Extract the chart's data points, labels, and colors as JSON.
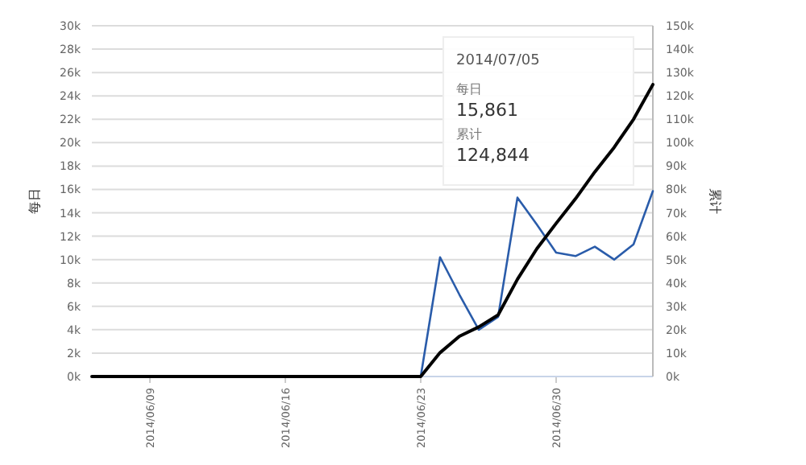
{
  "chart_data": {
    "type": "line",
    "x": [
      "2014-06-06",
      "2014-06-07",
      "2014-06-08",
      "2014-06-09",
      "2014-06-10",
      "2014-06-11",
      "2014-06-12",
      "2014-06-13",
      "2014-06-14",
      "2014-06-15",
      "2014-06-16",
      "2014-06-17",
      "2014-06-18",
      "2014-06-19",
      "2014-06-20",
      "2014-06-21",
      "2014-06-22",
      "2014-06-23",
      "2014-06-24",
      "2014-06-25",
      "2014-06-26",
      "2014-06-27",
      "2014-06-28",
      "2014-06-29",
      "2014-06-30",
      "2014-07-01",
      "2014-07-02",
      "2014-07-03",
      "2014-07-04",
      "2014-07-05"
    ],
    "series": [
      {
        "color": "#2a5caa",
        "values": [
          null,
          null,
          null,
          null,
          null,
          null,
          null,
          null,
          null,
          null,
          null,
          null,
          null,
          null,
          null,
          null,
          null,
          0,
          10200,
          7000,
          4000,
          5100,
          15300,
          13000,
          10600,
          10300,
          11100,
          10000,
          11300,
          15861
        ]
      },
      {
        "color": "#000000",
        "axis": "y2",
        "values": [
          0,
          0,
          0,
          0,
          0,
          0,
          0,
          0,
          0,
          0,
          0,
          0,
          0,
          0,
          0,
          0,
          0,
          0,
          10200,
          17200,
          21200,
          26300,
          41600,
          54600,
          65500,
          76000,
          87500,
          98000,
          110000,
          124844
        ]
      }
    ],
    "ylabel": "每日",
    "y2label": "累计",
    "xlim": [
      "2014-06-06",
      "2014-07-05"
    ],
    "xticks": [
      {
        "value": "2014-06-09",
        "label": "2014/06/09"
      },
      {
        "value": "2014-06-16",
        "label": "2014/06/16"
      },
      {
        "value": "2014-06-23",
        "label": "2014/06/23"
      },
      {
        "value": "2014-06-30",
        "label": "2014/06/30"
      }
    ],
    "ylim": [
      0,
      30000
    ],
    "yticks": [
      {
        "value": 0,
        "label": "0k"
      },
      {
        "value": 2000,
        "label": "2k"
      },
      {
        "value": 4000,
        "label": "4k"
      },
      {
        "value": 6000,
        "label": "6k"
      },
      {
        "value": 8000,
        "label": "8k"
      },
      {
        "value": 10000,
        "label": "10k"
      },
      {
        "value": 12000,
        "label": "12k"
      },
      {
        "value": 14000,
        "label": "14k"
      },
      {
        "value": 16000,
        "label": "16k"
      },
      {
        "value": 18000,
        "label": "18k"
      },
      {
        "value": 20000,
        "label": "20k"
      },
      {
        "value": 22000,
        "label": "22k"
      },
      {
        "value": 24000,
        "label": "24k"
      },
      {
        "value": 26000,
        "label": "26k"
      },
      {
        "value": 28000,
        "label": "28k"
      },
      {
        "value": 30000,
        "label": "30k"
      }
    ],
    "y2lim": [
      0,
      150000
    ],
    "y2ticks": [
      {
        "value": 0,
        "label": "0k"
      },
      {
        "value": 10000,
        "label": "10k"
      },
      {
        "value": 20000,
        "label": "20k"
      },
      {
        "value": 30000,
        "label": "30k"
      },
      {
        "value": 40000,
        "label": "40k"
      },
      {
        "value": 50000,
        "label": "50k"
      },
      {
        "value": 60000,
        "label": "60k"
      },
      {
        "value": 70000,
        "label": "70k"
      },
      {
        "value": 80000,
        "label": "80k"
      },
      {
        "value": 90000,
        "label": "90k"
      },
      {
        "value": 100000,
        "label": "100k"
      },
      {
        "value": 110000,
        "label": "110k"
      },
      {
        "value": 120000,
        "label": "120k"
      },
      {
        "value": 130000,
        "label": "130k"
      },
      {
        "value": 140000,
        "label": "140k"
      },
      {
        "value": 150000,
        "label": "150k"
      }
    ],
    "grid": "y",
    "annotations": [
      "2014/07/05",
      "每日",
      "15,861",
      "累计",
      "124,844"
    ]
  }
}
